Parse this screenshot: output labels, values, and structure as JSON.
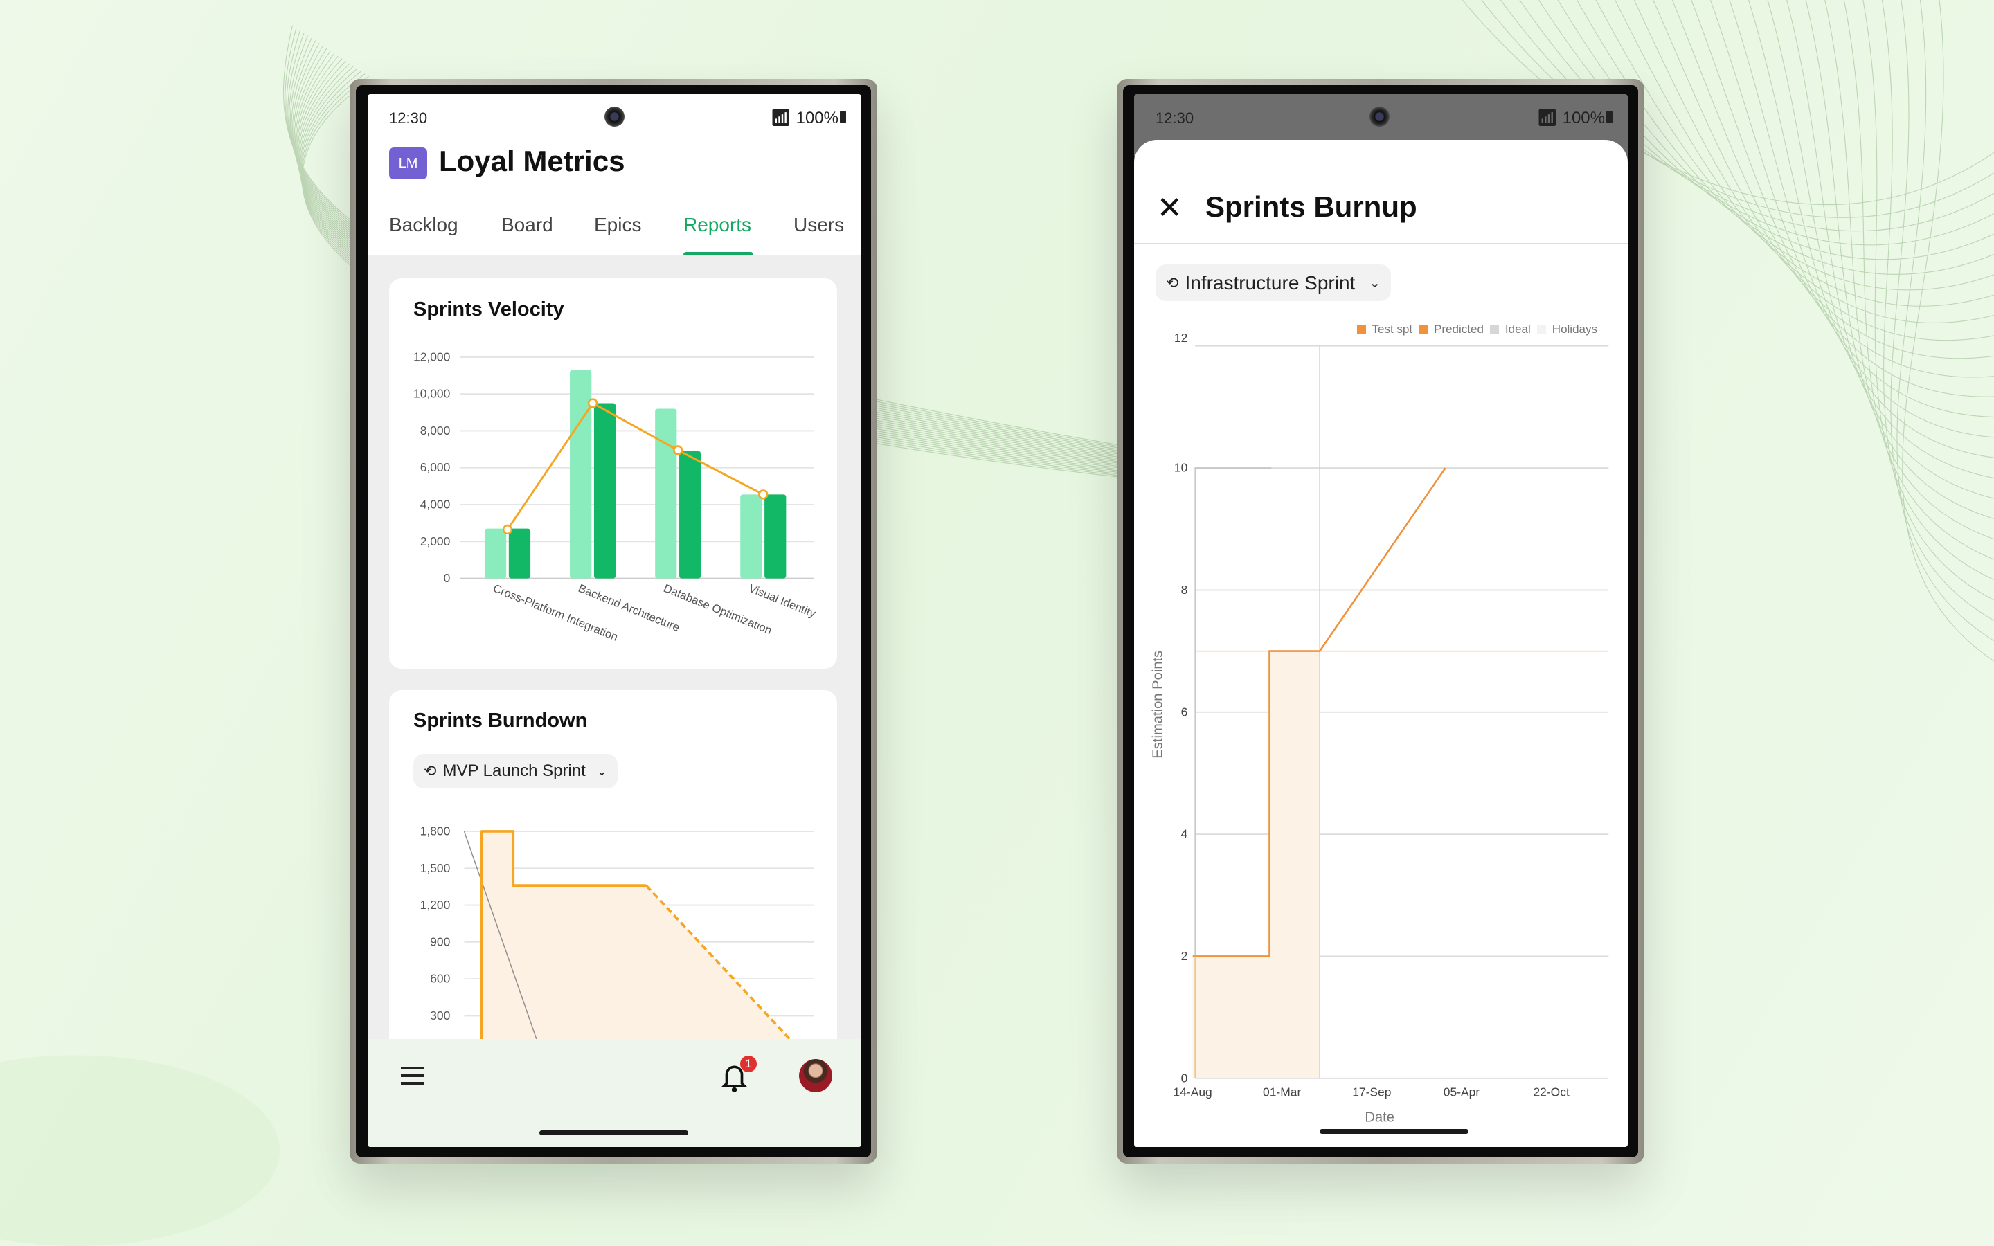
{
  "left_phone": {
    "status": {
      "time": "12:30",
      "battery": "100%"
    },
    "app": {
      "badge": "LM",
      "title": "Loyal Metrics",
      "badge_color": "#7360d3"
    },
    "tabs": [
      {
        "label": "Backlog",
        "active": false
      },
      {
        "label": "Board",
        "active": false
      },
      {
        "label": "Epics",
        "active": false
      },
      {
        "label": "Reports",
        "active": true
      },
      {
        "label": "Users",
        "active": false
      }
    ],
    "accent_color": "#14a862",
    "velocity": {
      "title": "Sprints Velocity"
    },
    "burndown": {
      "title": "Sprints Burndown",
      "sprint_select": "MVP Launch Sprint"
    },
    "bottom_nav": {
      "notification_count": "1"
    }
  },
  "right_phone": {
    "status": {
      "time": "12:30",
      "battery": "100%"
    },
    "title": "Sprints Burnup",
    "sprint_select": "Infrastructure Sprint",
    "legend": [
      {
        "label": "Test spt",
        "color": "#f0923a"
      },
      {
        "label": "Predicted",
        "color": "#f0923a"
      },
      {
        "label": "Ideal",
        "color": "#d6d6d6"
      },
      {
        "label": "Holidays",
        "color": "#f3f3f3"
      }
    ]
  },
  "chart_data": [
    {
      "type": "bar",
      "title": "Sprints Velocity",
      "categories": [
        "Cross-Platform Integration",
        "Backend Architecture",
        "Database Optimization",
        "Visual Identity"
      ],
      "series": [
        {
          "values": [
            2700,
            11300,
            9200,
            4550
          ],
          "color": "#8aebbd"
        },
        {
          "values": [
            2700,
            9500,
            6900,
            4550
          ],
          "color": "#12b866"
        },
        {
          "type": "line",
          "values": [
            2650,
            9500,
            6950,
            4550
          ],
          "color": "#f5a623"
        }
      ],
      "yticks": [
        "0",
        "2,000",
        "4,000",
        "6,000",
        "8,000",
        "10,000",
        "12,000"
      ],
      "ylim": [
        0,
        12000
      ],
      "grid": true
    },
    {
      "type": "line",
      "title": "Sprints Burndown",
      "yticks": [
        "300",
        "600",
        "900",
        "1,200",
        "1,500",
        "1,800"
      ],
      "ylim": [
        0,
        1800
      ],
      "series": [
        {
          "role": "ideal",
          "color": "#8f8f8f",
          "points": [
            [
              0,
              1800
            ],
            [
              11,
              0
            ]
          ]
        },
        {
          "role": "actual",
          "color": "#f5a623",
          "points": [
            [
              2.5,
              0
            ],
            [
              2.5,
              1800
            ],
            [
              7,
              1800
            ],
            [
              7,
              1360
            ],
            [
              26,
              1360
            ]
          ]
        },
        {
          "role": "projected",
          "dashed": true,
          "color": "#f5a623",
          "points": [
            [
              26,
              1360
            ],
            [
              48,
              20
            ]
          ]
        }
      ],
      "grid": true
    },
    {
      "type": "line",
      "title": "Sprints Burnup",
      "xlabel": "Date",
      "ylabel": "Estimation Points",
      "xticks": [
        "14-Aug",
        "01-Mar",
        "17-Sep",
        "05-Apr",
        "22-Oct"
      ],
      "yticks": [
        "0",
        "2",
        "4",
        "6",
        "8",
        "10",
        "12"
      ],
      "ylim": [
        0,
        12
      ],
      "legend_position": "top-right",
      "series": [
        {
          "name": "Test spt",
          "color": "#f0923a",
          "points": [
            [
              "14-Aug",
              2
            ],
            [
              "01-Feb",
              2
            ],
            [
              "01-Feb",
              7
            ],
            [
              "24-May",
              7
            ],
            [
              "28-Feb",
              10
            ]
          ]
        },
        {
          "name": "Ideal",
          "color": "#c8c8c8",
          "points": [
            [
              "14-Aug",
              0
            ],
            [
              "28-Aug",
              10
            ],
            [
              "28-Feb",
              10
            ]
          ]
        }
      ],
      "today_marker": "24-May",
      "grid": true
    }
  ]
}
